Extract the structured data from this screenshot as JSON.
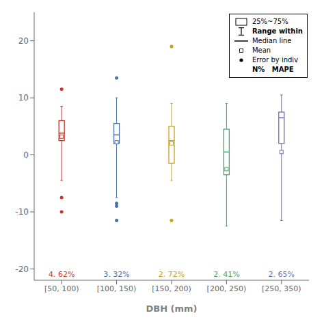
{
  "chart_data": {
    "type": "box",
    "xlabel": "DBH (mm)",
    "categories": [
      "[50, 100)",
      "[100, 150)",
      "[150, 200)",
      "[200, 250)",
      "[250, 350)"
    ],
    "colors": [
      "#c0392b",
      "#4a6fa5",
      "#c8a020",
      "#3aaa6a",
      "#6b6fb5"
    ],
    "boxes": [
      {
        "q1": 2.5,
        "median": 3.8,
        "q3": 6.0,
        "whislo": -4.5,
        "whishi": 8.5,
        "mean": 3.2,
        "fliers_pos": [
          11.5
        ],
        "fliers_neg": [
          -7.5,
          -10.0
        ]
      },
      {
        "q1": 2.0,
        "median": 3.5,
        "q3": 5.5,
        "whislo": -7.5,
        "whishi": 10.0,
        "mean": 2.2,
        "fliers_pos": [
          13.5
        ],
        "fliers_neg": [
          -9.0,
          -8.5,
          -11.5
        ]
      },
      {
        "q1": -1.5,
        "median": 2.5,
        "q3": 5.0,
        "whislo": -4.5,
        "whishi": 9.0,
        "mean": 2.0,
        "fliers_pos": [
          19.0
        ],
        "fliers_neg": [
          -11.5
        ]
      },
      {
        "q1": -3.5,
        "median": 0.5,
        "q3": 4.5,
        "whislo": -12.5,
        "whishi": 9.0,
        "mean": -2.5,
        "fliers_pos": [],
        "fliers_neg": []
      },
      {
        "q1": 2.0,
        "median": 6.5,
        "q3": 7.5,
        "whislo": -11.5,
        "whishi": 10.5,
        "mean": 0.5,
        "fliers_pos": [],
        "fliers_neg": []
      }
    ],
    "annotations": [
      "4. 62%",
      "3. 32%",
      "2. 72%",
      "2. 41%",
      "2. 65%"
    ],
    "ylim": [
      -22,
      25
    ],
    "yticks": [
      -20,
      -10,
      0,
      10,
      20
    ],
    "grid": false,
    "legend": "upper right",
    "legend_labels": [
      "25%~75%",
      "Range within",
      "Median line",
      "Mean",
      "Error by indiv",
      "N%   MAPE"
    ]
  }
}
